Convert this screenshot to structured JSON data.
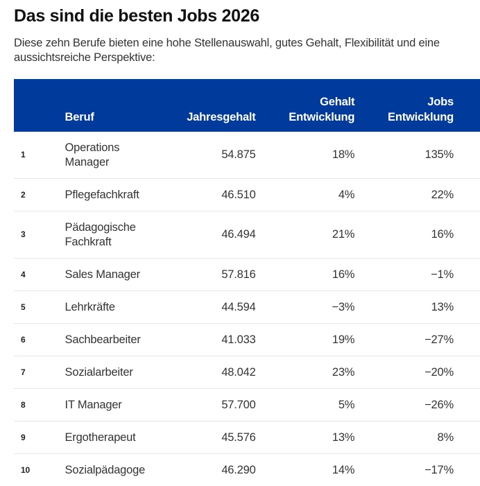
{
  "title": "Das sind die besten Jobs 2026",
  "subtitle": "Diese zehn Berufe bieten eine hohe Stellenauswahl, gutes Gehalt, Flexibilität und eine aussichtsreiche Perspektive:",
  "colors": {
    "header_bg": "#003b9b",
    "header_text": "#ffffff"
  },
  "table": {
    "headers": {
      "rank": "",
      "name": "Beruf",
      "salary": "Jahresgehalt",
      "salary_growth_line1": "Gehalt",
      "salary_growth_line2": "Entwicklung",
      "jobs_growth_line1": "Jobs",
      "jobs_growth_line2": "Entwicklung"
    },
    "rows": [
      {
        "rank": "1",
        "name": "Operations Manager",
        "salary": "54.875",
        "salary_growth": "18%",
        "jobs_growth": "135%"
      },
      {
        "rank": "2",
        "name": "Pflegefachkraft",
        "salary": "46.510",
        "salary_growth": "4%",
        "jobs_growth": "22%"
      },
      {
        "rank": "3",
        "name": "Pädagogische Fachkraft",
        "salary": "46.494",
        "salary_growth": "21%",
        "jobs_growth": "16%"
      },
      {
        "rank": "4",
        "name": "Sales Manager",
        "salary": "57.816",
        "salary_growth": "16%",
        "jobs_growth": "−1%"
      },
      {
        "rank": "5",
        "name": "Lehrkräfte",
        "salary": "44.594",
        "salary_growth": "−3%",
        "jobs_growth": "13%"
      },
      {
        "rank": "6",
        "name": "Sachbearbeiter",
        "salary": "41.033",
        "salary_growth": "19%",
        "jobs_growth": "−27%"
      },
      {
        "rank": "7",
        "name": "Sozialarbeiter",
        "salary": "48.042",
        "salary_growth": "23%",
        "jobs_growth": "−20%"
      },
      {
        "rank": "8",
        "name": "IT Manager",
        "salary": "57.700",
        "salary_growth": "5%",
        "jobs_growth": "−26%"
      },
      {
        "rank": "9",
        "name": "Ergotherapeut",
        "salary": "45.576",
        "salary_growth": "13%",
        "jobs_growth": "8%"
      },
      {
        "rank": "10",
        "name": "Sozialpädagoge",
        "salary": "46.290",
        "salary_growth": "14%",
        "jobs_growth": "−17%"
      }
    ]
  }
}
